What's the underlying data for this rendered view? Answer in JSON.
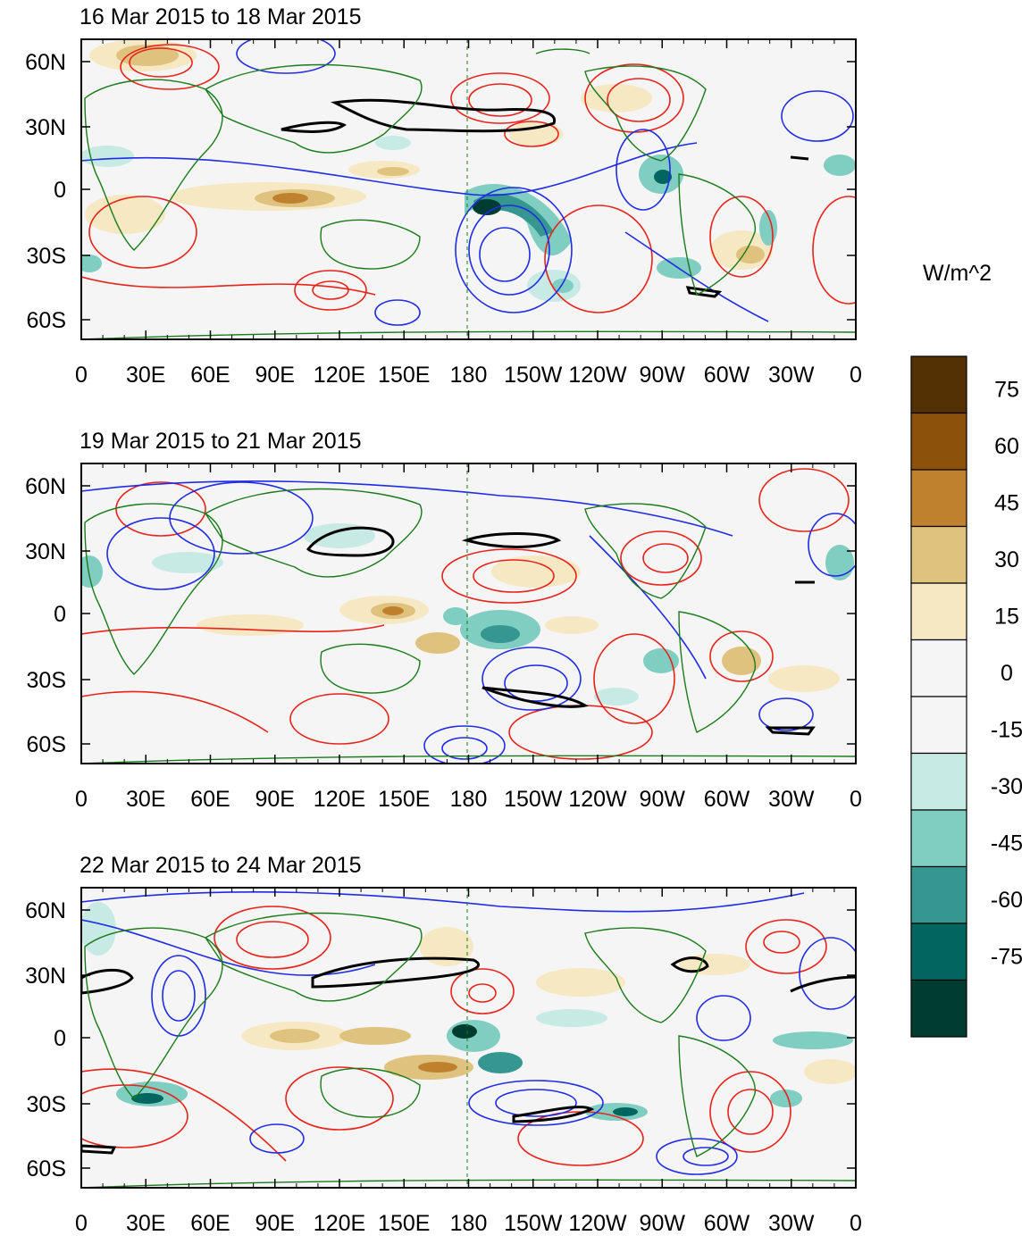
{
  "figure": {
    "panels": [
      {
        "id": "p1",
        "title": "16 Mar 2015 to 18 Mar 2015"
      },
      {
        "id": "p2",
        "title": "19 Mar 2015 to 21 Mar 2015"
      },
      {
        "id": "p3",
        "title": "22 Mar 2015 to 24 Mar 2015"
      }
    ],
    "lat_labels": [
      "60N",
      "30N",
      "0",
      "30S",
      "60S"
    ],
    "lon_labels": [
      "0",
      "30E",
      "60E",
      "90E",
      "120E",
      "150E",
      "180",
      "150W",
      "120W",
      "90W",
      "60W",
      "30W",
      "0"
    ],
    "colorbar": {
      "unit": "W/m^2",
      "labels": [
        "75",
        "60",
        "45",
        "30",
        "15",
        "0",
        "-15",
        "-30",
        "-45",
        "-60",
        "-75"
      ],
      "colors": [
        "#543005",
        "#8c510a",
        "#bf812d",
        "#dfc27d",
        "#f6e8c3",
        "#f5f5f5",
        "#f5f5f5",
        "#c7eae5",
        "#80cdc1",
        "#35978f",
        "#01665e",
        "#003c30"
      ]
    },
    "colors": {
      "positive_contour": "#e8221a",
      "negative_contour": "#1f2be6",
      "coastline": "#1a7a1a",
      "bold_contour": "#000000"
    }
  }
}
